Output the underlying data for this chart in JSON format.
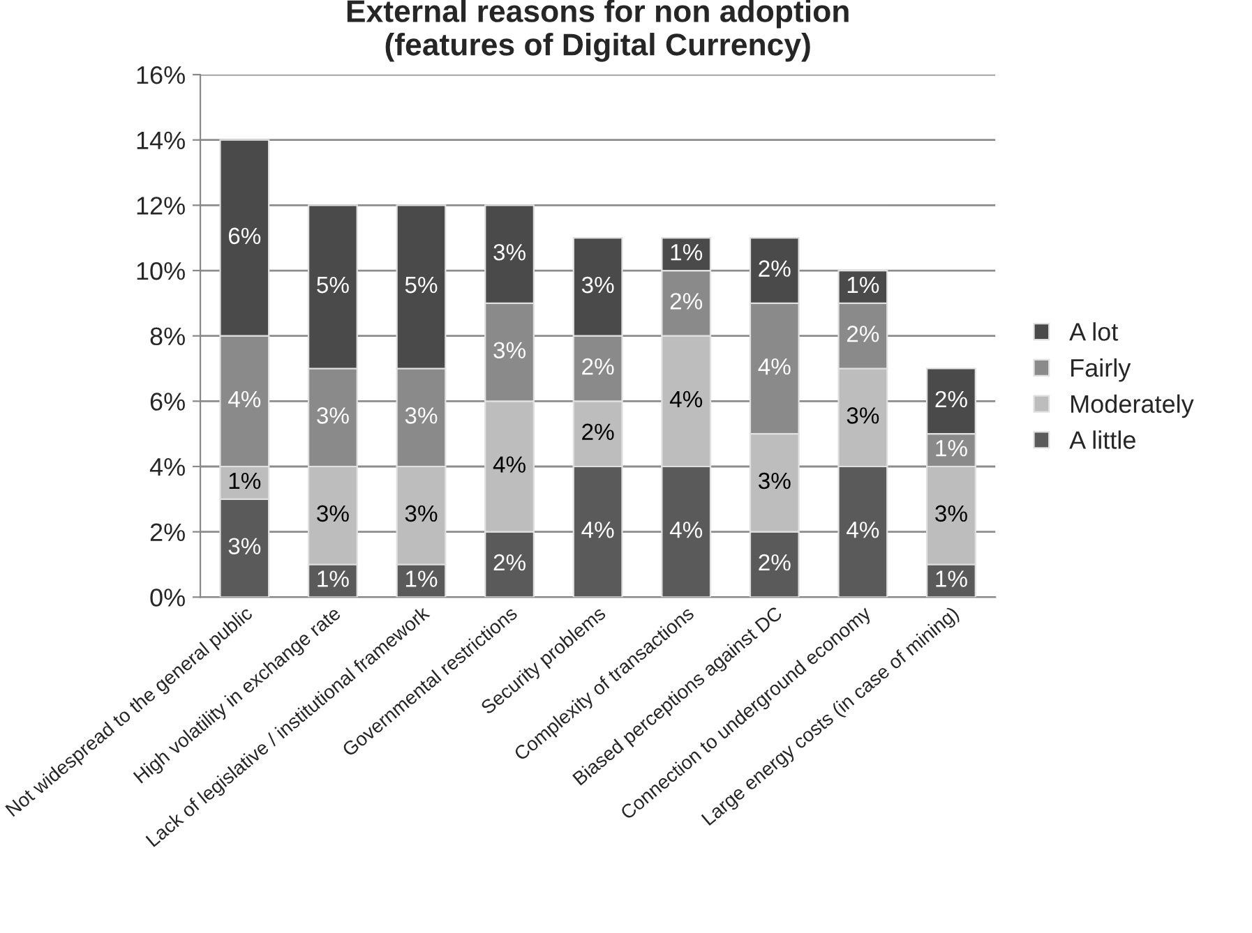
{
  "chart_data": {
    "type": "bar",
    "title": "External reasons for non adoption\n(features of Digital Currency)",
    "categories": [
      "Not widespread to the general public",
      "High volatility in exchange rate",
      "Lack of legislative / institutional framework",
      "Governmental restrictions",
      "Security problems",
      "Complexity of transactions",
      "Biased perceptions against DC",
      "Connection to underground economy",
      "Large energy costs (in case of mining)"
    ],
    "stacked": true,
    "series": [
      {
        "name": "A little",
        "color": "#5a5a5a",
        "values": [
          3,
          1,
          1,
          2,
          4,
          4,
          2,
          4,
          1
        ],
        "value_labels": [
          "3%",
          "1%",
          "1%",
          "2%",
          "4%",
          "4%",
          "2%",
          "4%",
          "1%"
        ]
      },
      {
        "name": "Moderately",
        "color": "#bdbdbd",
        "values": [
          1,
          3,
          3,
          4,
          2,
          4,
          3,
          3,
          3
        ],
        "value_labels": [
          "1%",
          "3%",
          "3%",
          "4%",
          "2%",
          "4%",
          "3%",
          "3%",
          "3%"
        ]
      },
      {
        "name": "Fairly",
        "color": "#8a8a8a",
        "values": [
          4,
          3,
          3,
          3,
          2,
          2,
          4,
          2,
          1
        ],
        "value_labels": [
          "4%",
          "3%",
          "3%",
          "3%",
          "2%",
          "2%",
          "4%",
          "2%",
          "1%"
        ]
      },
      {
        "name": "A lot",
        "color": "#4a4a4a",
        "values": [
          6,
          5,
          5,
          3,
          3,
          1,
          2,
          1,
          2
        ],
        "value_labels": [
          "6%",
          "5%",
          "5%",
          "3%",
          "3%",
          "1%",
          "2%",
          "1%",
          "2%"
        ]
      }
    ],
    "ylim": [
      0,
      16
    ],
    "yticks": [
      {
        "value": 0,
        "label": "0%"
      },
      {
        "value": 2,
        "label": "2%"
      },
      {
        "value": 4,
        "label": "4%"
      },
      {
        "value": 6,
        "label": "6%"
      },
      {
        "value": 8,
        "label": "8%"
      },
      {
        "value": 10,
        "label": "10%"
      },
      {
        "value": 12,
        "label": "12%"
      },
      {
        "value": 14,
        "label": "14%"
      },
      {
        "value": 16,
        "label": "16%"
      }
    ],
    "grid": "y",
    "legend": "right"
  }
}
